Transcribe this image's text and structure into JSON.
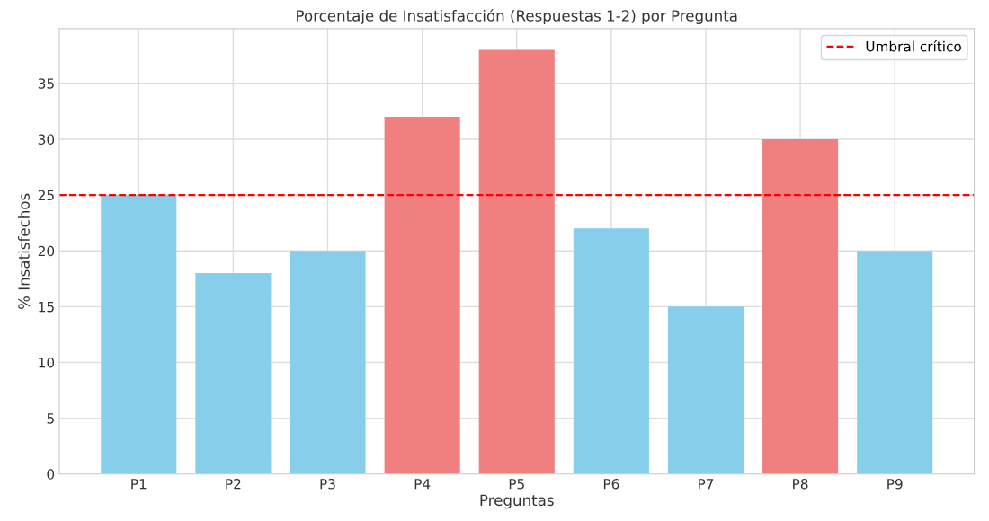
{
  "chart_data": {
    "type": "bar",
    "title": "Porcentaje de Insatisfacción (Respuestas 1-2) por Pregunta",
    "xlabel": "Preguntas",
    "ylabel": "% Insatisfechos",
    "categories": [
      "P1",
      "P2",
      "P3",
      "P4",
      "P5",
      "P6",
      "P7",
      "P8",
      "P9"
    ],
    "values": [
      25,
      18,
      20,
      32,
      38,
      22,
      15,
      30,
      20
    ],
    "colors": [
      "#87ceeb",
      "#87ceeb",
      "#87ceeb",
      "#f08080",
      "#f08080",
      "#87ceeb",
      "#87ceeb",
      "#f08080",
      "#87ceeb"
    ],
    "ylim": [
      0,
      39.9
    ],
    "yticks": [
      0,
      5,
      10,
      15,
      20,
      25,
      30,
      35
    ],
    "ref_lines": [
      {
        "axis": "y",
        "value": 25,
        "label": "Umbral crítico",
        "color": "#ff0000",
        "line_style": "dashed"
      }
    ],
    "grid": true,
    "legend": "top right"
  }
}
